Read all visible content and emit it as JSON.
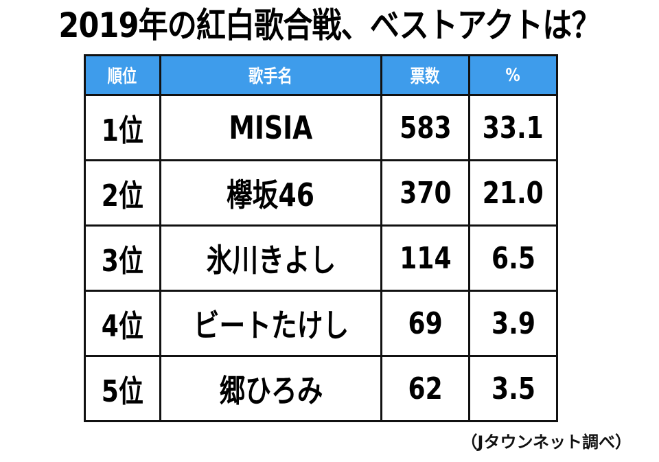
{
  "title": "2019年の紅白歌合戦、ベストアクトは？",
  "chart_data": {
    "type": "table",
    "title": "2019年の紅白歌合戦、ベストアクトは？",
    "columns": [
      "順位",
      "歌手名",
      "票数",
      "%"
    ],
    "rows": [
      {
        "rank": "1位",
        "name": "MISIA",
        "votes": "583",
        "percent": "33.1"
      },
      {
        "rank": "2位",
        "name": "欅坂46",
        "votes": "370",
        "percent": "21.0"
      },
      {
        "rank": "3位",
        "name": "氷川きよし",
        "votes": "114",
        "percent": "6.5"
      },
      {
        "rank": "4位",
        "name": "ビートたけし",
        "votes": "69",
        "percent": "3.9"
      },
      {
        "rank": "5位",
        "name": "郷ひろみ",
        "votes": "62",
        "percent": "3.5"
      }
    ],
    "header_color": "#3e9ceb"
  },
  "source": "（Jタウンネット調べ）"
}
